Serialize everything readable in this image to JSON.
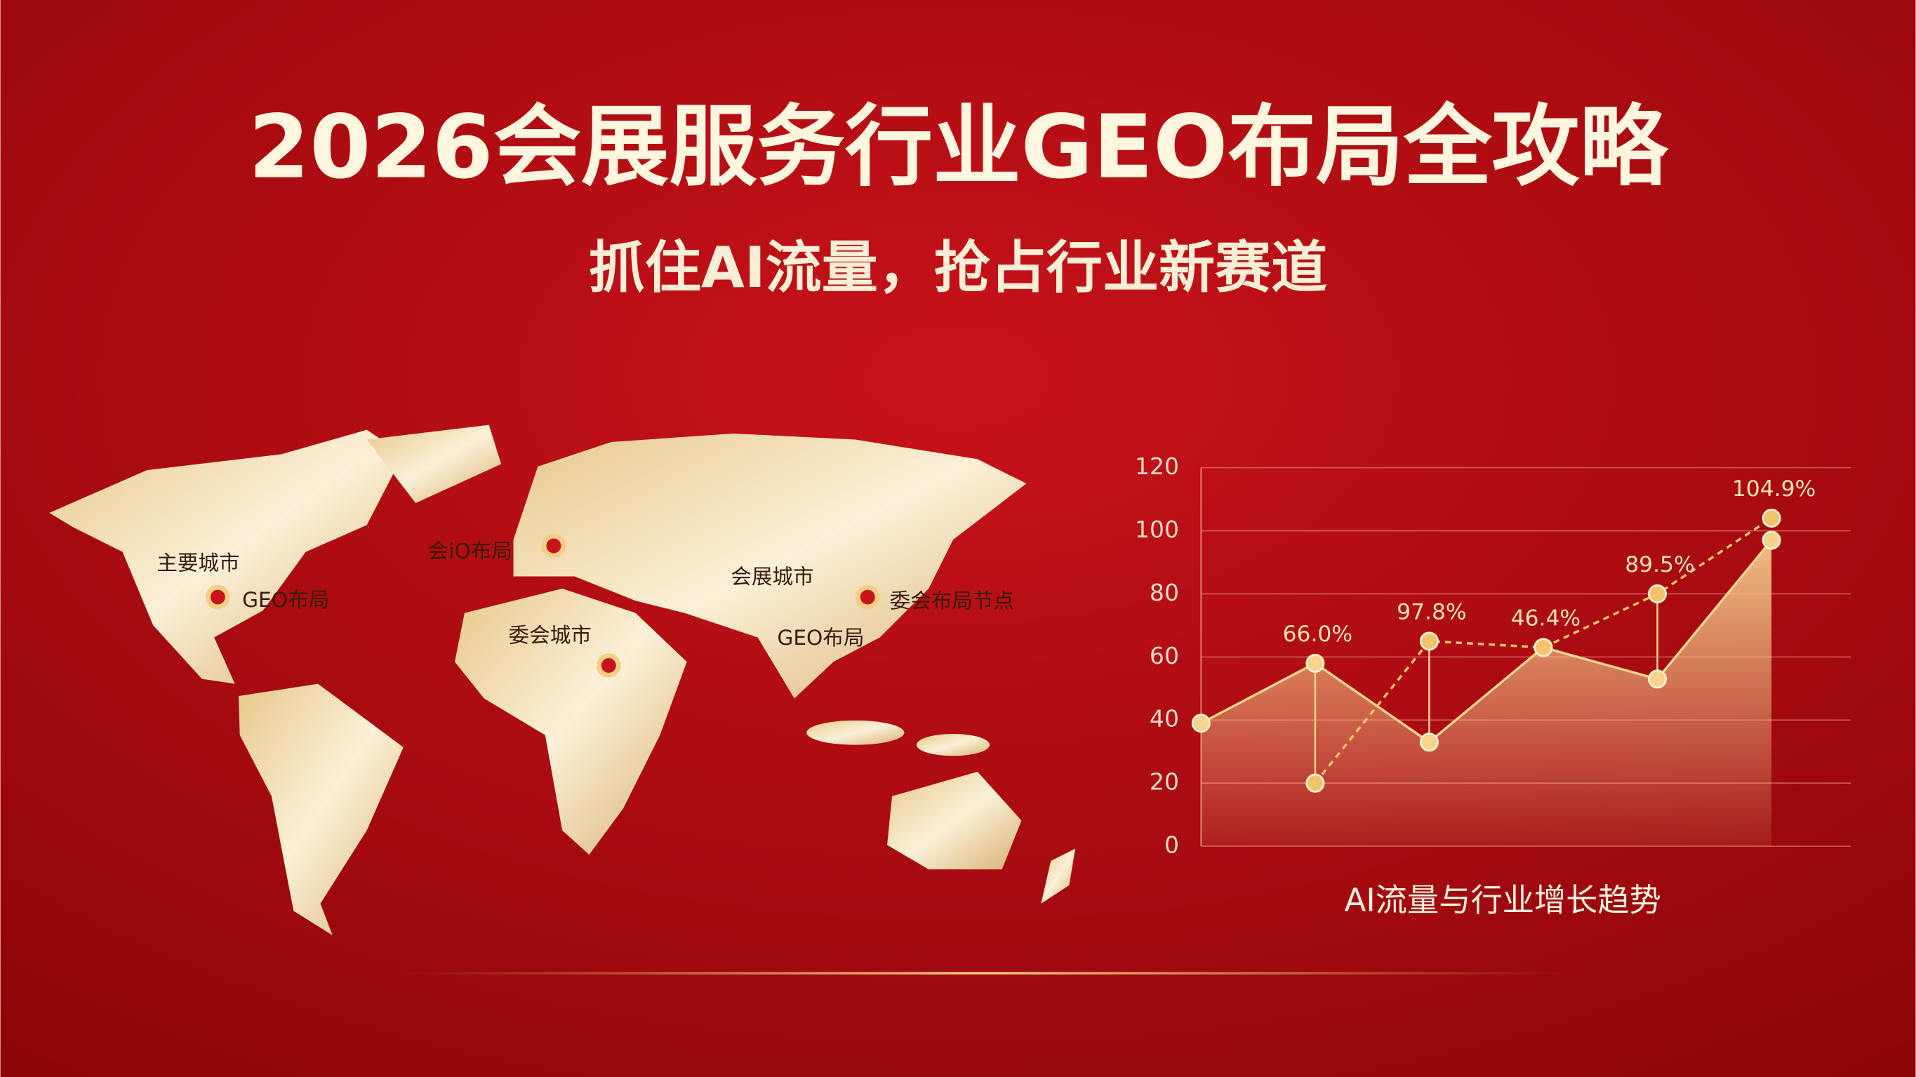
{
  "header": {
    "title": "2026会展服务行业GEO布局全攻略",
    "subtitle": "抓住AI流量，抢占行业新赛道"
  },
  "map": {
    "labels": [
      "主要城市",
      "GEO布局",
      "会iO布局",
      "会展城市",
      "委会城市",
      "GEO布局",
      "委会布局节点"
    ]
  },
  "chart_data": {
    "type": "line",
    "title": "AI流量与行业增长趋势",
    "categories": [
      null,
      null,
      null,
      null,
      null,
      null
    ],
    "series": [
      {
        "color": "#f7d48e",
        "fill": true,
        "dashed": false,
        "values": [
          39,
          58,
          33,
          63,
          53,
          97
        ]
      },
      {
        "color": "#f2c46b",
        "fill": false,
        "dashed": true,
        "values": [
          null,
          20,
          65,
          63,
          80,
          104
        ]
      }
    ],
    "annotations": [
      "66.0%",
      "97.8%",
      "46.4%",
      "89.5%",
      "104.9%"
    ],
    "ylim": [
      0,
      120
    ],
    "yticks": [
      0,
      20,
      40,
      60,
      80,
      100,
      120
    ],
    "grid": true
  }
}
